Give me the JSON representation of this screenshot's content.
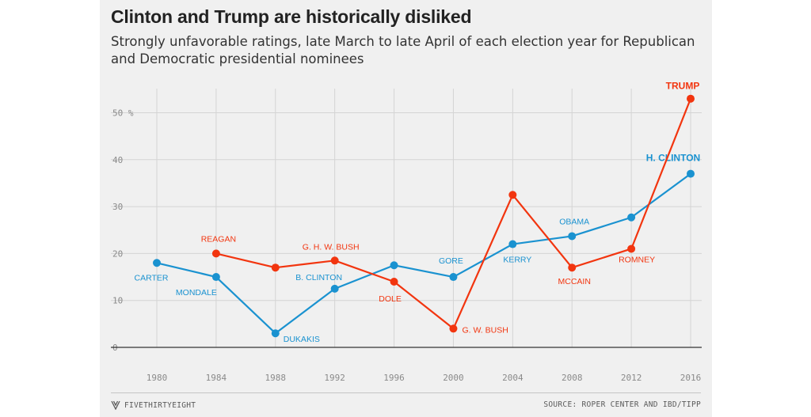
{
  "title": "Clinton and Trump are historically disliked",
  "subtitle": "Strongly unfavorable ratings, late March to late April of each election year for Republican and Democratic presidential nominees",
  "footer": {
    "brand": "FIVETHIRTYEIGHT",
    "brand_icon": "fivethirtyeight-logo-icon",
    "source": "SOURCE: ROPER CENTER AND IBD/TIPP"
  },
  "colors": {
    "democratic": "#1a92d0",
    "republican": "#f2350f",
    "background": "#f0f0f0",
    "grid": "#d4d4d4",
    "baseline": "#333333"
  },
  "chart_data": {
    "type": "line",
    "title": "Clinton and Trump are historically disliked",
    "subtitle": "Strongly unfavorable ratings, late March to late April of each election year for Republican and Democratic presidential nominees",
    "xlabel": "",
    "ylabel": "",
    "x": [
      1980,
      1984,
      1988,
      1992,
      1996,
      2000,
      2004,
      2008,
      2012,
      2016
    ],
    "ylim": [
      0,
      55
    ],
    "yticks": [
      0,
      10,
      20,
      30,
      40,
      50
    ],
    "ytick_labels": [
      "0",
      "10",
      "20",
      "30",
      "40",
      "50 %"
    ],
    "grid": true,
    "series": [
      {
        "party": "Democratic",
        "color": "#1a92d0",
        "points": [
          {
            "x": 1980,
            "y": 18,
            "label": "CARTER"
          },
          {
            "x": 1984,
            "y": 15,
            "label": "MONDALE"
          },
          {
            "x": 1988,
            "y": 3,
            "label": "DUKAKIS"
          },
          {
            "x": 1992,
            "y": 12.5,
            "label": "B. CLINTON"
          },
          {
            "x": 1996,
            "y": 17.5,
            "label": ""
          },
          {
            "x": 2000,
            "y": 15,
            "label": "GORE"
          },
          {
            "x": 2004,
            "y": 22,
            "label": "KERRY"
          },
          {
            "x": 2008,
            "y": 23.7,
            "label": "OBAMA"
          },
          {
            "x": 2012,
            "y": 27.7,
            "label": ""
          },
          {
            "x": 2016,
            "y": 37,
            "label": "H. CLINTON"
          }
        ]
      },
      {
        "party": "Republican",
        "color": "#f2350f",
        "points": [
          {
            "x": 1984,
            "y": 20,
            "label": "REAGAN"
          },
          {
            "x": 1988,
            "y": 17,
            "label": ""
          },
          {
            "x": 1992,
            "y": 18.5,
            "label": "G. H. W. BUSH"
          },
          {
            "x": 1996,
            "y": 14,
            "label": "DOLE"
          },
          {
            "x": 2000,
            "y": 4,
            "label": "G. W. BUSH"
          },
          {
            "x": 2004,
            "y": 32.5,
            "label": ""
          },
          {
            "x": 2008,
            "y": 17,
            "label": "MCCAIN"
          },
          {
            "x": 2012,
            "y": 21,
            "label": "ROMNEY"
          },
          {
            "x": 2016,
            "y": 53,
            "label": "TRUMP"
          }
        ]
      }
    ]
  }
}
